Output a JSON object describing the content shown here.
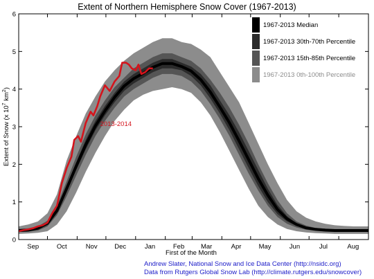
{
  "chart_data": {
    "type": "area",
    "title": "Extent of Northern Hemisphere Snow Cover (1967-2013)",
    "xlabel": "First of the Month",
    "ylabel_main": "Extent of Snow (x 10",
    "ylabel_sup1": "7",
    "ylabel_mid": " km",
    "ylabel_sup2": "2",
    "ylabel_end": ")",
    "ylim": [
      0,
      6
    ],
    "yticks": [
      "0",
      "1",
      "2",
      "3",
      "4",
      "5",
      "6"
    ],
    "xlim": [
      0,
      365
    ],
    "month_ticks": [
      0,
      30,
      61,
      91,
      122,
      153,
      181,
      212,
      242,
      273,
      303,
      334,
      365
    ],
    "month_labels": [
      {
        "label": "Sep",
        "x": 15
      },
      {
        "label": "Oct",
        "x": 45
      },
      {
        "label": "Nov",
        "x": 76
      },
      {
        "label": "Dec",
        "x": 106
      },
      {
        "label": "Jan",
        "x": 137
      },
      {
        "label": "Feb",
        "x": 167
      },
      {
        "label": "Mar",
        "x": 196
      },
      {
        "label": "Apr",
        "x": 227
      },
      {
        "label": "May",
        "x": 257
      },
      {
        "label": "Jun",
        "x": 288
      },
      {
        "label": "Jul",
        "x": 318
      },
      {
        "label": "Aug",
        "x": 349
      }
    ],
    "grid": false,
    "legend_placement": "top-right",
    "colors": {
      "median": "#000000",
      "p30_70": "#2b2b2b",
      "p15_85": "#555555",
      "p0_100": "#8c8c8c",
      "series_2013": "#d4141c"
    },
    "legend": [
      {
        "label": "1967-2013 Median",
        "color": "#000000",
        "text_color": "#000000"
      },
      {
        "label": "1967-2013 30th-70th Percentile",
        "color": "#2b2b2b",
        "text_color": "#000000"
      },
      {
        "label": "1967-2013 15th-85th Percentile",
        "color": "#555555",
        "text_color": "#000000"
      },
      {
        "label": "1967-2013 0th-100th Percentile",
        "color": "#8c8c8c",
        "text_color": "#8c8c8c"
      }
    ],
    "x": [
      0,
      10,
      20,
      30,
      40,
      50,
      60,
      70,
      80,
      90,
      100,
      110,
      120,
      130,
      140,
      150,
      160,
      170,
      180,
      190,
      200,
      210,
      220,
      230,
      240,
      250,
      260,
      270,
      280,
      290,
      300,
      310,
      320,
      330,
      340,
      350,
      360,
      365
    ],
    "bands": {
      "p0_100_low": [
        0.15,
        0.16,
        0.18,
        0.22,
        0.4,
        0.75,
        1.25,
        1.8,
        2.3,
        2.75,
        3.15,
        3.45,
        3.7,
        3.85,
        3.95,
        4.0,
        4.05,
        4.0,
        3.9,
        3.65,
        3.3,
        2.85,
        2.35,
        1.85,
        1.35,
        0.9,
        0.6,
        0.4,
        0.28,
        0.22,
        0.19,
        0.17,
        0.16,
        0.15,
        0.15,
        0.15,
        0.15,
        0.15
      ],
      "p0_100_high": [
        0.35,
        0.4,
        0.48,
        0.7,
        1.2,
        2.1,
        2.75,
        3.35,
        3.8,
        4.2,
        4.5,
        4.75,
        4.95,
        5.1,
        5.25,
        5.35,
        5.35,
        5.25,
        5.2,
        5.05,
        4.85,
        4.45,
        4.05,
        3.65,
        3.1,
        2.55,
        2.0,
        1.5,
        1.05,
        0.75,
        0.58,
        0.48,
        0.42,
        0.38,
        0.36,
        0.35,
        0.35,
        0.35
      ],
      "p15_85_low": [
        0.2,
        0.21,
        0.24,
        0.35,
        0.65,
        1.15,
        1.7,
        2.25,
        2.75,
        3.15,
        3.5,
        3.8,
        4.0,
        4.15,
        4.3,
        4.4,
        4.4,
        4.35,
        4.2,
        3.95,
        3.6,
        3.2,
        2.75,
        2.25,
        1.75,
        1.3,
        0.9,
        0.6,
        0.42,
        0.32,
        0.26,
        0.23,
        0.21,
        0.2,
        0.2,
        0.2,
        0.2,
        0.2
      ],
      "p15_85_high": [
        0.28,
        0.3,
        0.35,
        0.5,
        0.9,
        1.55,
        2.2,
        2.8,
        3.3,
        3.7,
        4.05,
        4.3,
        4.55,
        4.7,
        4.85,
        4.95,
        4.95,
        4.85,
        4.75,
        4.55,
        4.25,
        3.9,
        3.5,
        3.05,
        2.55,
        2.0,
        1.5,
        1.05,
        0.7,
        0.48,
        0.37,
        0.31,
        0.29,
        0.28,
        0.28,
        0.28,
        0.28,
        0.28
      ],
      "p30_70_low": [
        0.22,
        0.23,
        0.27,
        0.41,
        0.72,
        1.28,
        1.85,
        2.4,
        2.9,
        3.3,
        3.65,
        3.95,
        4.15,
        4.3,
        4.45,
        4.55,
        4.55,
        4.5,
        4.35,
        4.1,
        3.75,
        3.35,
        2.9,
        2.4,
        1.9,
        1.42,
        1.0,
        0.68,
        0.48,
        0.36,
        0.29,
        0.25,
        0.23,
        0.22,
        0.22,
        0.22,
        0.22,
        0.22
      ],
      "p30_70_high": [
        0.26,
        0.27,
        0.32,
        0.46,
        0.82,
        1.42,
        2.05,
        2.65,
        3.15,
        3.55,
        3.9,
        4.2,
        4.4,
        4.55,
        4.7,
        4.8,
        4.8,
        4.7,
        4.6,
        4.4,
        4.1,
        3.7,
        3.3,
        2.85,
        2.35,
        1.85,
        1.35,
        0.92,
        0.62,
        0.43,
        0.33,
        0.28,
        0.26,
        0.26,
        0.26,
        0.26,
        0.26,
        0.26
      ],
      "median": [
        0.24,
        0.25,
        0.3,
        0.43,
        0.77,
        1.35,
        1.95,
        2.52,
        3.02,
        3.42,
        3.78,
        4.08,
        4.28,
        4.42,
        4.58,
        4.68,
        4.68,
        4.6,
        4.48,
        4.25,
        3.92,
        3.52,
        3.1,
        2.62,
        2.12,
        1.62,
        1.18,
        0.8,
        0.55,
        0.4,
        0.31,
        0.27,
        0.25,
        0.24,
        0.24,
        0.24,
        0.24,
        0.24
      ]
    },
    "series": [
      {
        "name": "2013-2014",
        "x": [
          0,
          5,
          10,
          15,
          20,
          25,
          30,
          35,
          40,
          45,
          50,
          55,
          58,
          62,
          65,
          70,
          75,
          78,
          82,
          85,
          90,
          95,
          100,
          105,
          108,
          112,
          115,
          118,
          122,
          125,
          128,
          132,
          136,
          140
        ],
        "values": [
          0.22,
          0.25,
          0.27,
          0.3,
          0.35,
          0.38,
          0.45,
          0.7,
          0.9,
          1.5,
          1.9,
          2.2,
          2.65,
          2.75,
          2.6,
          3.1,
          3.4,
          3.3,
          3.55,
          3.8,
          4.1,
          3.95,
          4.2,
          4.35,
          4.7,
          4.7,
          4.65,
          4.55,
          4.5,
          4.65,
          4.4,
          4.45,
          4.55,
          4.55
        ]
      }
    ],
    "annotations": [
      {
        "text": "2013-2014",
        "x": 85,
        "y": 3.02,
        "color": "#d4141c"
      }
    ]
  },
  "credits": [
    "Andrew Slater, National Snow and Ice Data Center (http://nsidc.org)",
    "Data from Rutgers Global Snow Lab (http://climate.rutgers.edu/snowcover)"
  ]
}
